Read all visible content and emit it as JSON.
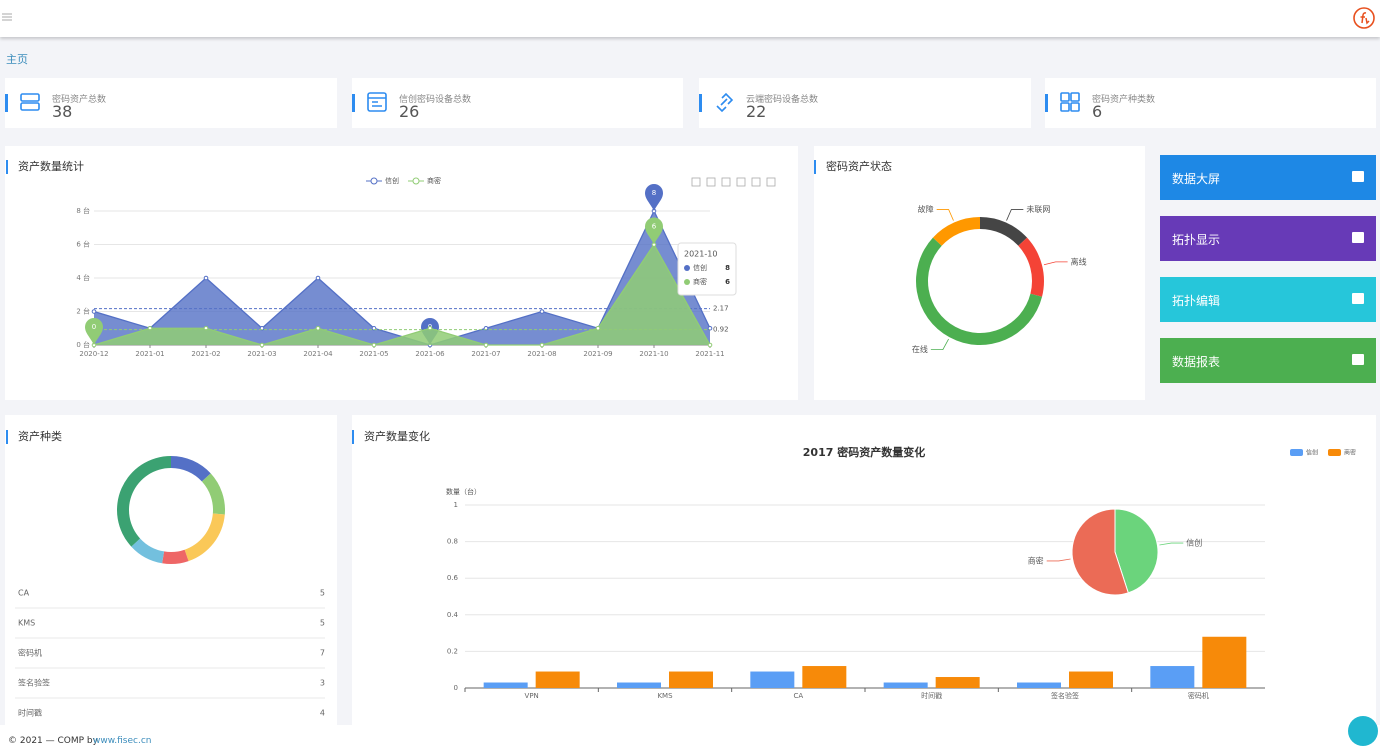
{
  "header": {
    "breadcrumb": "主页"
  },
  "stats": [
    {
      "label": "密码资产总数",
      "value": 38
    },
    {
      "label": "信创密码设备总数",
      "value": 26
    },
    {
      "label": "云端密码设备总数",
      "value": 22
    },
    {
      "label": "密码资产种类数",
      "value": 6
    }
  ],
  "buttons": [
    "数据大屏",
    "拓扑显示",
    "拓扑编辑",
    "数据报表"
  ],
  "chart_data": [
    {
      "type": "area",
      "title": "资产数量统计",
      "categories": [
        "2020-12",
        "2021-01",
        "2021-02",
        "2021-03",
        "2021-04",
        "2021-05",
        "2021-06",
        "2021-07",
        "2021-08",
        "2021-09",
        "2021-10",
        "2021-11"
      ],
      "series": [
        {
          "name": "信创",
          "color": "#5470c6",
          "values": [
            2,
            1,
            4,
            1,
            4,
            1,
            0,
            1,
            2,
            1,
            8,
            1
          ],
          "average": 2.17
        },
        {
          "name": "商密",
          "color": "#91cc75",
          "values": [
            0,
            1,
            1,
            0,
            1,
            0,
            1,
            0,
            0,
            1,
            6,
            0
          ],
          "average": 0.92
        }
      ],
      "ylim": [
        0,
        8
      ],
      "yticks": [
        {
          "value": 0,
          "label": "0 台"
        },
        {
          "value": 2,
          "label": "2 台"
        },
        {
          "value": 4,
          "label": "4 台"
        },
        {
          "value": 6,
          "label": "6 台"
        },
        {
          "value": 8,
          "label": "8 台"
        }
      ],
      "grid": true
    },
    {
      "type": "donut",
      "title": "密码资产状态",
      "categories": [
        "未联网",
        "离线",
        "在线",
        "故障"
      ],
      "values": [
        5,
        6,
        22,
        5
      ],
      "colors": [
        "#454545",
        "#f44336",
        "#4caf50",
        "#ff9800"
      ]
    },
    {
      "type": "donut",
      "title": "资产种类",
      "categories": [
        "CA",
        "KMS",
        "密码机",
        "签名验签",
        "时间戳",
        null
      ],
      "values": [
        5,
        5,
        7,
        3,
        4,
        14
      ],
      "colors": [
        "#5470c6",
        "#91cc75",
        "#fac858",
        "#ee6666",
        "#73c0de",
        "#3ba272"
      ],
      "list": true
    },
    {
      "type": "bar",
      "panel_title": "资产数量变化",
      "title": "2017 密码资产数量变化",
      "y_label": "数量（台）",
      "categories": [
        "VPN",
        "KMS",
        "CA",
        "时间戳",
        "签名验签",
        "密码机"
      ],
      "series": [
        {
          "name": "信创",
          "color": "#5a9ef5",
          "values": [
            0.03,
            0.03,
            0.09,
            0.03,
            0.03,
            0.12
          ]
        },
        {
          "name": "商密",
          "color": "#f78a09",
          "values": [
            0.09,
            0.09,
            0.12,
            0.06,
            0.09,
            0.28
          ]
        }
      ],
      "ylim": [
        0,
        1
      ],
      "yticks": [
        0,
        0.2,
        0.4,
        0.6,
        0.8,
        1
      ],
      "grid": true,
      "inset": {
        "type": "pie",
        "categories": [
          "信创",
          "商密"
        ],
        "values": [
          45,
          55
        ],
        "colors": [
          "#6bd47c",
          "#eb6b56"
        ]
      }
    }
  ],
  "footer": {
    "text": "© 2021 — COMP by",
    "link": "www.fisec.cn"
  }
}
